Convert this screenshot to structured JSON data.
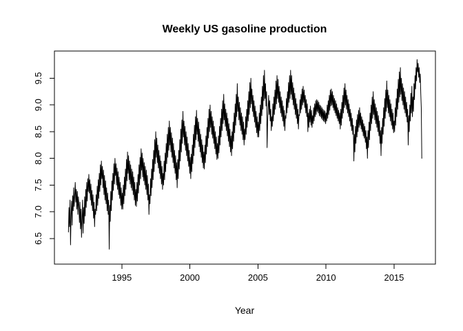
{
  "chart_data": {
    "type": "line",
    "title": "Weekly US gasoline production",
    "xlabel": "Year",
    "ylabel": "",
    "line_color": "#000000",
    "axis_color": "#000000",
    "background_color": "#ffffff",
    "grid": false,
    "legend": "none",
    "xlim": [
      1990.05,
      2018.04
    ],
    "ylim": [
      6.02,
      10.01
    ],
    "x_ticks": {
      "values": [
        1995,
        2000,
        2005,
        2010,
        2015
      ],
      "labels": [
        "1995",
        "2000",
        "2005",
        "2010",
        "2015"
      ]
    },
    "y_ticks": {
      "values": [
        6.5,
        7.0,
        7.5,
        8.0,
        8.5,
        9.0,
        9.5
      ],
      "labels": [
        "6.5",
        "7.0",
        "7.5",
        "8.0",
        "8.5",
        "9.0",
        "9.5"
      ]
    },
    "x_start": 1991.08,
    "x_step": 0.0384,
    "values": [
      6.62,
      7.08,
      6.72,
      7.22,
      6.38,
      6.92,
      7.2,
      6.75,
      7.3,
      7.02,
      7.45,
      7.1,
      7.3,
      7.55,
      7.18,
      7.42,
      7.05,
      7.38,
      6.95,
      7.28,
      7.12,
      6.8,
      7.18,
      6.68,
      7.05,
      6.52,
      6.85,
      7.22,
      6.6,
      7.08,
      6.78,
      7.28,
      6.92,
      7.42,
      7.08,
      7.55,
      7.2,
      7.62,
      7.38,
      7.7,
      7.35,
      7.6,
      7.22,
      7.52,
      7.12,
      7.4,
      7.02,
      7.32,
      6.88,
      7.18,
      6.72,
      7.05,
      6.95,
      7.32,
      7.02,
      7.48,
      7.12,
      7.6,
      7.25,
      7.72,
      7.38,
      7.88,
      7.5,
      7.95,
      7.62,
      7.85,
      7.45,
      7.78,
      7.32,
      7.68,
      7.22,
      7.58,
      7.15,
      7.45,
      7.02,
      7.35,
      6.95,
      7.22,
      6.3,
      7.12,
      6.82,
      7.38,
      7.02,
      7.58,
      7.22,
      7.72,
      7.4,
      7.9,
      7.52,
      8.0,
      7.68,
      7.9,
      7.5,
      7.82,
      7.42,
      7.75,
      7.32,
      7.65,
      7.25,
      7.55,
      7.12,
      7.45,
      7.05,
      7.35,
      7.05,
      7.5,
      7.15,
      7.65,
      7.3,
      7.8,
      7.42,
      7.98,
      7.58,
      8.12,
      7.72,
      8.05,
      7.6,
      7.95,
      7.52,
      7.88,
      7.45,
      7.8,
      7.4,
      7.75,
      7.32,
      7.65,
      7.22,
      7.55,
      7.12,
      7.42,
      7.1,
      7.55,
      7.2,
      7.7,
      7.35,
      7.88,
      7.5,
      8.02,
      7.62,
      8.18,
      7.78,
      8.1,
      7.65,
      8.0,
      7.58,
      7.92,
      7.5,
      7.85,
      7.42,
      7.78,
      7.32,
      7.68,
      7.22,
      7.52,
      6.95,
      7.32,
      7.15,
      7.62,
      7.3,
      7.8,
      7.45,
      7.98,
      7.6,
      8.15,
      7.75,
      8.35,
      7.9,
      8.5,
      8.02,
      8.38,
      7.92,
      8.25,
      7.82,
      8.15,
      7.72,
      8.05,
      7.62,
      7.95,
      7.52,
      7.85,
      7.42,
      7.72,
      7.5,
      7.95,
      7.6,
      8.1,
      7.75,
      8.28,
      7.9,
      8.45,
      8.02,
      8.58,
      8.15,
      8.7,
      8.25,
      8.58,
      8.12,
      8.48,
      8.02,
      8.38,
      7.92,
      8.28,
      7.82,
      8.15,
      7.72,
      8.05,
      7.6,
      7.92,
      7.45,
      7.98,
      7.62,
      8.15,
      7.8,
      8.35,
      7.95,
      8.55,
      8.12,
      8.72,
      8.28,
      8.88,
      8.4,
      8.7,
      8.25,
      8.6,
      8.15,
      8.5,
      8.05,
      8.4,
      7.95,
      8.28,
      7.85,
      8.15,
      7.72,
      8.02,
      7.62,
      8.08,
      7.75,
      8.25,
      7.9,
      8.45,
      8.05,
      8.62,
      8.2,
      8.78,
      8.35,
      8.9,
      8.45,
      8.75,
      8.32,
      8.68,
      8.22,
      8.55,
      8.12,
      8.45,
      8.02,
      8.35,
      7.92,
      8.25,
      7.82,
      8.12,
      7.8,
      8.25,
      7.92,
      8.42,
      8.08,
      8.58,
      8.22,
      8.75,
      8.38,
      8.92,
      8.5,
      9.0,
      8.58,
      8.88,
      8.45,
      8.78,
      8.38,
      8.7,
      8.28,
      8.6,
      8.18,
      8.5,
      8.08,
      8.4,
      7.98,
      8.28,
      8.0,
      8.42,
      8.1,
      8.6,
      8.25,
      8.75,
      8.4,
      8.92,
      8.52,
      9.08,
      8.65,
      9.2,
      8.72,
      9.02,
      8.6,
      8.92,
      8.52,
      8.85,
      8.42,
      8.75,
      8.32,
      8.65,
      8.22,
      8.55,
      8.12,
      8.42,
      8.05,
      8.5,
      8.18,
      8.68,
      8.32,
      8.85,
      8.48,
      9.02,
      8.62,
      9.2,
      8.78,
      9.4,
      8.88,
      9.15,
      8.72,
      9.05,
      8.62,
      8.95,
      8.52,
      8.85,
      8.45,
      8.78,
      8.35,
      8.68,
      8.25,
      8.55,
      8.35,
      8.78,
      8.45,
      8.92,
      8.58,
      9.08,
      8.7,
      9.25,
      8.82,
      9.42,
      8.95,
      9.5,
      9.02,
      9.3,
      8.88,
      9.18,
      8.78,
      9.08,
      8.68,
      8.98,
      8.58,
      8.88,
      8.48,
      8.78,
      8.4,
      8.68,
      8.4,
      8.85,
      8.52,
      9.0,
      8.65,
      9.15,
      8.8,
      9.35,
      8.92,
      9.55,
      9.08,
      9.65,
      9.12,
      9.4,
      8.98,
      9.25,
      8.2,
      8.68,
      8.95,
      9.18,
      8.82,
      9.08,
      8.7,
      8.92,
      8.52,
      8.78,
      8.6,
      9.02,
      8.7,
      9.15,
      8.82,
      9.28,
      8.92,
      9.45,
      9.02,
      9.55,
      9.12,
      9.48,
      9.05,
      9.35,
      8.95,
      9.25,
      8.85,
      9.15,
      8.78,
      9.08,
      8.7,
      8.98,
      8.6,
      8.9,
      8.52,
      8.8,
      8.75,
      9.12,
      8.85,
      9.25,
      8.95,
      9.42,
      9.05,
      9.55,
      9.12,
      9.65,
      9.2,
      9.55,
      9.1,
      9.42,
      9.0,
      9.32,
      8.92,
      9.22,
      8.82,
      9.12,
      8.75,
      9.02,
      8.65,
      8.92,
      8.55,
      8.82,
      8.8,
      9.1,
      8.85,
      9.2,
      8.92,
      9.3,
      9.0,
      9.35,
      9.05,
      9.28,
      8.95,
      9.18,
      8.85,
      9.1,
      8.78,
      9.02,
      8.5,
      8.85,
      8.58,
      8.92,
      8.68,
      8.98,
      8.62,
      8.9,
      8.58,
      8.8,
      8.65,
      8.95,
      8.7,
      9.02,
      8.78,
      9.08,
      8.82,
      9.1,
      8.88,
      9.08,
      8.85,
      9.05,
      8.8,
      9.0,
      8.78,
      8.98,
      8.75,
      8.95,
      8.72,
      8.92,
      8.7,
      8.9,
      8.68,
      8.88,
      8.65,
      8.85,
      8.7,
      9.0,
      8.75,
      9.08,
      8.82,
      9.18,
      8.9,
      9.28,
      8.98,
      9.3,
      9.0,
      9.25,
      8.95,
      9.18,
      8.9,
      9.12,
      8.85,
      9.08,
      8.8,
      9.02,
      8.75,
      8.95,
      8.7,
      8.9,
      8.65,
      8.85,
      8.55,
      8.92,
      8.62,
      9.05,
      8.75,
      9.18,
      8.85,
      9.32,
      8.95,
      9.4,
      9.0,
      9.28,
      8.92,
      9.18,
      8.85,
      9.1,
      8.78,
      9.02,
      8.7,
      8.92,
      8.6,
      8.85,
      8.52,
      8.75,
      8.45,
      8.62,
      7.95,
      8.45,
      8.12,
      8.6,
      8.28,
      8.72,
      8.4,
      8.82,
      8.5,
      8.9,
      8.58,
      8.95,
      8.62,
      8.85,
      8.55,
      8.78,
      8.5,
      8.72,
      8.42,
      8.65,
      8.38,
      8.6,
      8.3,
      8.52,
      8.18,
      8.4,
      8.0,
      8.52,
      8.2,
      8.68,
      8.35,
      8.85,
      8.52,
      9.0,
      8.65,
      9.15,
      8.75,
      9.25,
      8.82,
      9.1,
      8.72,
      9.02,
      8.65,
      8.95,
      8.58,
      8.88,
      8.5,
      8.8,
      8.42,
      8.7,
      8.28,
      8.52,
      8.05,
      8.58,
      8.28,
      8.75,
      8.45,
      8.95,
      8.6,
      9.12,
      8.75,
      9.28,
      8.88,
      9.45,
      8.95,
      9.28,
      8.85,
      9.18,
      8.78,
      9.1,
      8.7,
      9.02,
      8.62,
      8.92,
      8.55,
      8.85,
      8.48,
      8.7,
      8.5,
      8.95,
      8.62,
      9.12,
      8.78,
      9.3,
      8.92,
      9.48,
      9.05,
      9.62,
      9.15,
      9.7,
      9.2,
      9.5,
      9.08,
      9.4,
      9.0,
      9.32,
      8.92,
      9.25,
      8.85,
      9.15,
      8.78,
      9.05,
      8.68,
      8.92,
      8.25,
      8.8,
      8.5,
      9.0,
      8.7,
      9.22,
      8.85,
      9.35,
      8.78,
      9.15,
      8.88,
      9.4,
      9.1,
      9.55,
      9.3,
      9.7,
      9.45,
      9.85,
      9.62,
      9.78,
      9.52,
      9.7,
      9.42,
      9.58,
      9.22,
      8.95,
      8.0
    ]
  }
}
